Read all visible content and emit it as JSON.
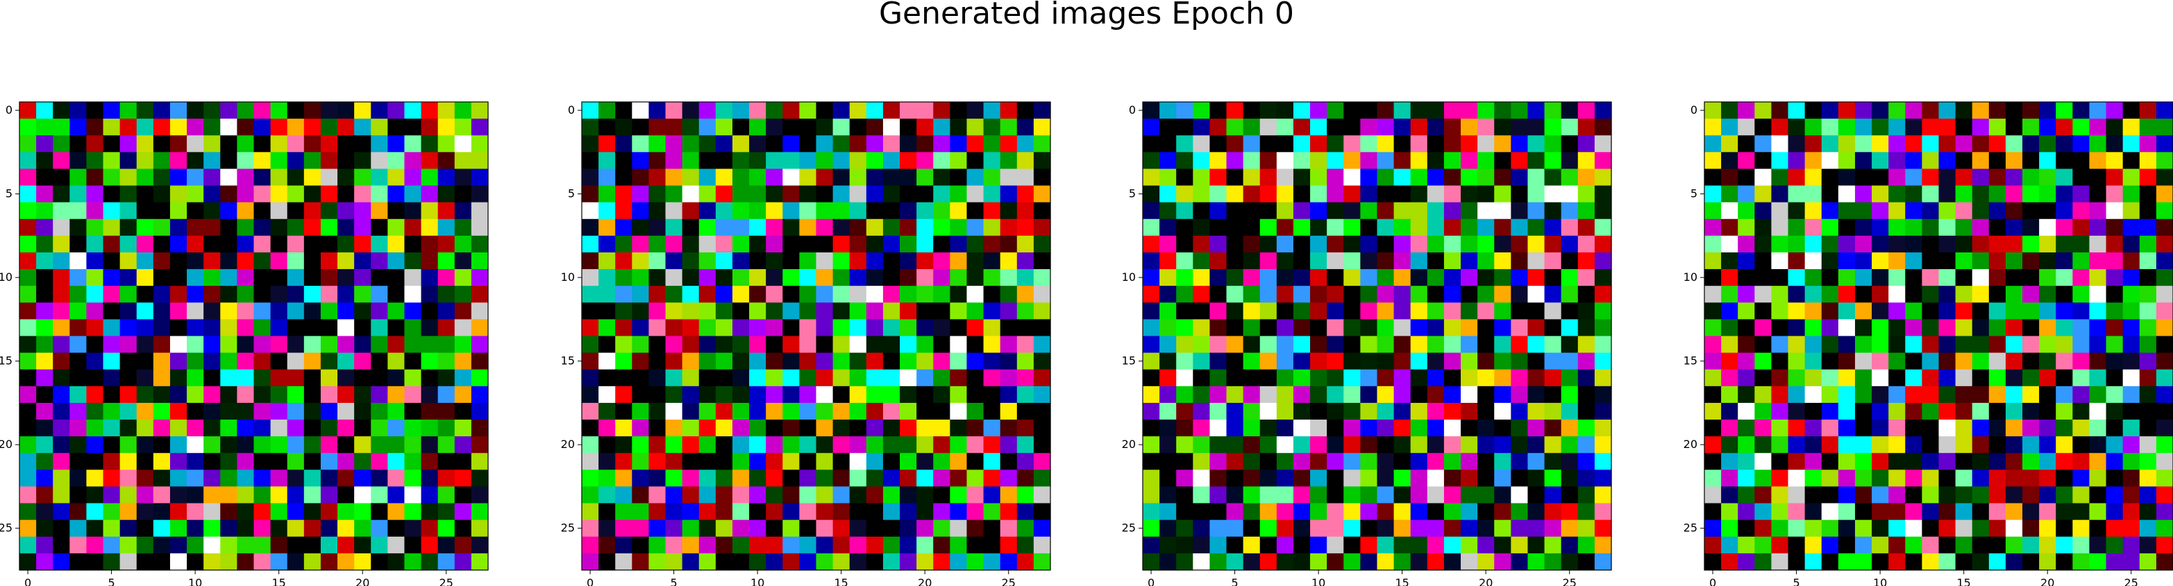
{
  "title": "Generated images Epoch 0",
  "chart_data": {
    "type": "heatmap",
    "title": "Generated images Epoch 0",
    "panel_count": 4,
    "grid_size": [
      28,
      28
    ],
    "xlim": [
      -0.5,
      27.5
    ],
    "ylim": [
      27.5,
      -0.5
    ],
    "x_ticks": [
      0,
      5,
      10,
      15,
      20,
      25
    ],
    "y_ticks": [
      0,
      5,
      10,
      15,
      20,
      25
    ],
    "panels": [
      {
        "name": ""
      },
      {
        "name": ""
      },
      {
        "name": ""
      },
      {
        "name": ""
      }
    ]
  }
}
